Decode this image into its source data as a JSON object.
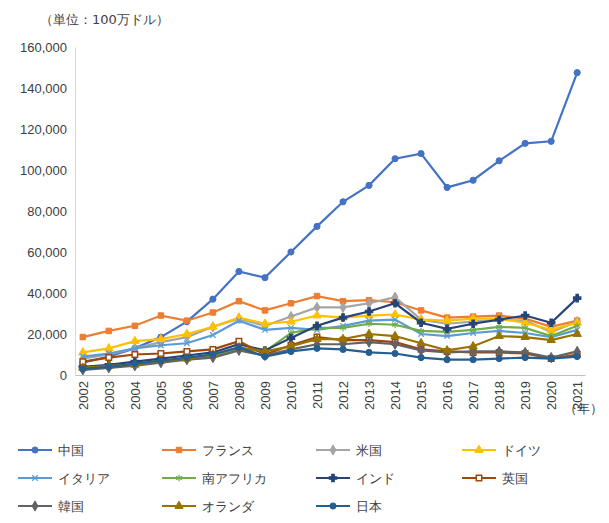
{
  "chart_data": {
    "type": "line",
    "y_label": "（単位：100万ドル）",
    "x_label": "（年）",
    "categories": [
      "2002",
      "2003",
      "2004",
      "2005",
      "2006",
      "2007",
      "2008",
      "2009",
      "2010",
      "2011",
      "2012",
      "2013",
      "2014",
      "2015",
      "2016",
      "2017",
      "2018",
      "2019",
      "2020",
      "2021"
    ],
    "ylim": [
      0,
      160000
    ],
    "yticks": [
      0,
      {
        "value": 20000,
        "label": "20,000"
      },
      {
        "value": 40000,
        "label": "40,000"
      },
      {
        "value": 60000,
        "label": "60,000"
      },
      {
        "value": 80000,
        "label": "80,000"
      },
      {
        "value": 100000,
        "label": "100,000"
      },
      {
        "value": 120000,
        "label": "120,000"
      },
      {
        "value": 140000,
        "label": "140,000"
      },
      {
        "value": 160000,
        "label": "160,000"
      }
    ],
    "grid": false,
    "legend": "bottom",
    "series": [
      {
        "name": "中国",
        "color": "#4472c4",
        "marker": "circle",
        "values": [
          6000,
          9000,
          13000,
          18500,
          26000,
          37000,
          50500,
          47500,
          60000,
          72500,
          84500,
          92500,
          105500,
          108000,
          91500,
          95000,
          104500,
          113000,
          114000,
          147500
        ]
      },
      {
        "name": "フランス",
        "color": "#ed7d31",
        "marker": "square",
        "values": [
          18500,
          21500,
          24000,
          29000,
          26500,
          30500,
          36000,
          31500,
          35000,
          38500,
          36000,
          36500,
          35500,
          31500,
          28000,
          28500,
          29000,
          27500,
          23500,
          26500
        ]
      },
      {
        "name": "米国",
        "color": "#a5a5a5",
        "marker": "diamond",
        "values": [
          8000,
          10000,
          13000,
          16000,
          18500,
          23500,
          27500,
          24000,
          28500,
          33000,
          33000,
          35000,
          38000,
          27000,
          25000,
          26000,
          27000,
          26500,
          21000,
          26000
        ]
      },
      {
        "name": "ドイツ",
        "color": "#ffc000",
        "marker": "triangle",
        "values": [
          11000,
          13000,
          16500,
          17500,
          20000,
          23500,
          28000,
          25000,
          26000,
          29000,
          28000,
          29000,
          29500,
          27000,
          26500,
          27500,
          27500,
          25500,
          22000,
          25500
        ]
      },
      {
        "name": "イタリア",
        "color": "#5b9bd5",
        "marker": "x",
        "values": [
          9000,
          10500,
          13000,
          14500,
          15500,
          19500,
          26500,
          22000,
          23000,
          22000,
          24000,
          26500,
          27000,
          20000,
          19000,
          20500,
          21500,
          20500,
          18500,
          22000
        ]
      },
      {
        "name": "南アフリカ",
        "color": "#70ad47",
        "marker": "star",
        "values": [
          3500,
          4500,
          5500,
          7000,
          7500,
          9000,
          12500,
          11500,
          20500,
          23000,
          23000,
          25000,
          24500,
          21500,
          21000,
          22000,
          23500,
          23000,
          19000,
          24000
        ]
      },
      {
        "name": "インド",
        "color": "#264478",
        "marker": "plus",
        "values": [
          4000,
          5000,
          6500,
          8000,
          9500,
          11000,
          15000,
          12000,
          18000,
          24000,
          28000,
          31000,
          35000,
          25500,
          22500,
          25000,
          27000,
          29000,
          25500,
          37500
        ]
      },
      {
        "name": "英国",
        "color": "#9e480e",
        "marker": "square",
        "values": [
          6500,
          8500,
          10000,
          10500,
          11500,
          12500,
          16500,
          10000,
          14500,
          18500,
          17000,
          17000,
          16000,
          12500,
          11500,
          11000,
          11000,
          10500,
          8000,
          10000
        ]
      },
      {
        "name": "韓国",
        "color": "#636363",
        "marker": "diamond",
        "values": [
          2500,
          3500,
          4500,
          6000,
          7500,
          8500,
          12000,
          9500,
          12500,
          15000,
          15000,
          16000,
          15000,
          12000,
          11000,
          11500,
          11500,
          11000,
          8500,
          11500
        ]
      },
      {
        "name": "オランダ",
        "color": "#997300",
        "marker": "triangle",
        "values": [
          3500,
          4500,
          5000,
          7000,
          8000,
          10000,
          13500,
          11500,
          14000,
          17500,
          17500,
          20000,
          19000,
          15500,
          12000,
          14000,
          19000,
          18500,
          17000,
          20000
        ]
      },
      {
        "name": "日本",
        "color": "#255e91",
        "marker": "circle",
        "values": [
          3000,
          4000,
          5500,
          7000,
          8500,
          10000,
          13500,
          9000,
          11500,
          13000,
          12500,
          11000,
          10500,
          8500,
          7500,
          7500,
          8000,
          8500,
          8000,
          9000
        ]
      }
    ]
  }
}
